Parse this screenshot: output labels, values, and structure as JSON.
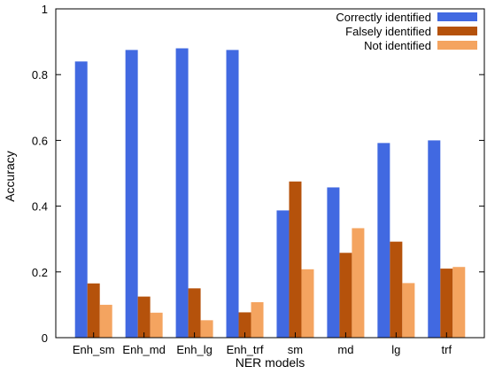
{
  "chart_data": {
    "type": "bar",
    "xlabel": "NER models",
    "ylabel": "Accuracy",
    "ylim": [
      0,
      1
    ],
    "yticks": [
      "0",
      "0.2",
      "0.4",
      "0.6",
      "0.8",
      "1"
    ],
    "categories": [
      "Enh_sm",
      "Enh_md",
      "Enh_lg",
      "Enh_trf",
      "sm",
      "md",
      "lg",
      "trf"
    ],
    "series": [
      {
        "name": "Correctly identified",
        "color": "#4169e1",
        "values": [
          0.84,
          0.875,
          0.88,
          0.875,
          0.387,
          0.457,
          0.592,
          0.6
        ]
      },
      {
        "name": "Falsely identified",
        "color": "#b5520b",
        "values": [
          0.165,
          0.125,
          0.15,
          0.077,
          0.475,
          0.258,
          0.292,
          0.21
        ]
      },
      {
        "name": "Not identified",
        "color": "#f4a460",
        "values": [
          0.1,
          0.076,
          0.053,
          0.108,
          0.208,
          0.333,
          0.166,
          0.215
        ]
      }
    ],
    "legend": "top-right",
    "grid": false
  }
}
